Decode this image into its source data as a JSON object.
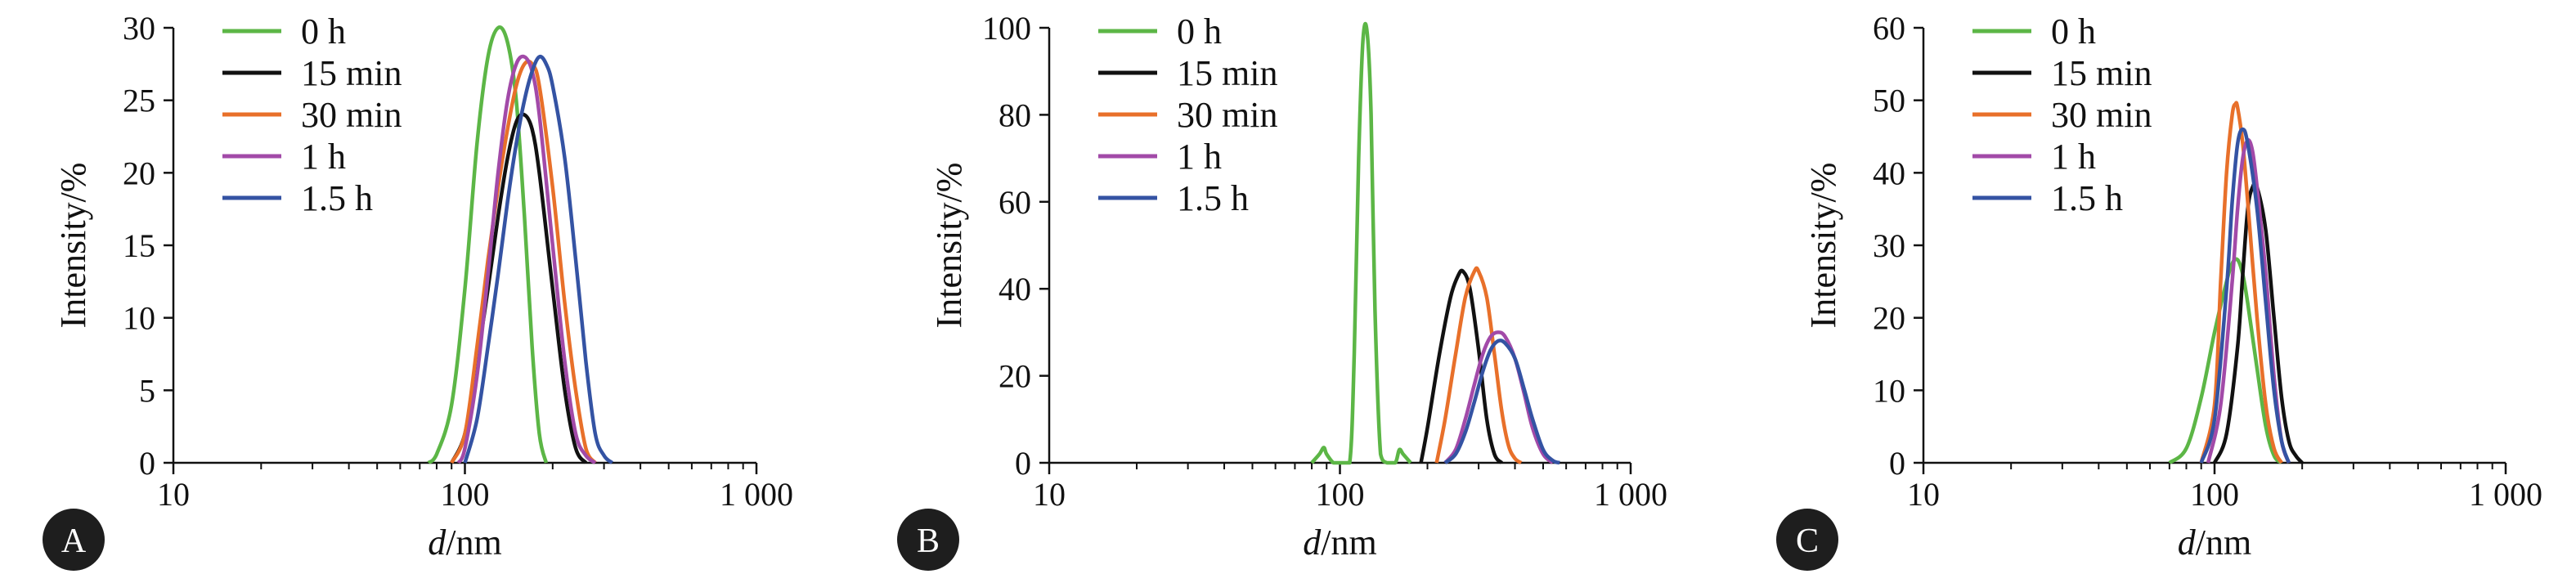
{
  "colors": {
    "0 h": "#5cb646",
    "15 min": "#111111",
    "30 min": "#e8702a",
    "1 h": "#a24aa8",
    "1.5 h": "#3453a3"
  },
  "chart_data": [
    {
      "type": "line",
      "panel_label": "A",
      "xlabel_italic": "d",
      "xlabel_rest": "/nm",
      "ylabel": "Intensity/%",
      "xscale": "log",
      "xlim": [
        10,
        1000
      ],
      "xticks": [
        10,
        100,
        1000
      ],
      "xtick_labels": [
        "10",
        "100",
        "1 000"
      ],
      "ylim": [
        0,
        30
      ],
      "yticks": [
        0,
        5,
        10,
        15,
        20,
        25,
        30
      ],
      "grid": false,
      "legend_position": "top-left",
      "series": [
        {
          "name": "0 h",
          "x": [
            75,
            80,
            90,
            100,
            110,
            120,
            130,
            140,
            150,
            160,
            170,
            180,
            190
          ],
          "y": [
            0,
            0.6,
            4,
            12,
            22,
            28,
            30,
            29,
            25,
            17,
            8,
            2,
            0
          ]
        },
        {
          "name": "15 min",
          "x": [
            90,
            100,
            110,
            120,
            130,
            140,
            150,
            160,
            170,
            180,
            200,
            220,
            240,
            260
          ],
          "y": [
            0,
            2,
            7,
            12,
            17,
            21,
            23.5,
            24,
            23,
            20,
            12,
            5,
            1,
            0
          ]
        },
        {
          "name": "30 min",
          "x": [
            90,
            100,
            110,
            120,
            130,
            140,
            150,
            160,
            170,
            180,
            200,
            220,
            240,
            260,
            280
          ],
          "y": [
            0,
            2,
            8,
            14,
            19,
            23,
            26,
            27.5,
            27.5,
            26,
            19,
            11,
            5,
            1,
            0
          ]
        },
        {
          "name": "1 h",
          "x": [
            95,
            100,
            110,
            120,
            130,
            140,
            150,
            160,
            170,
            180,
            200,
            220,
            240,
            260,
            280
          ],
          "y": [
            0,
            1,
            6,
            13,
            20,
            25,
            27.5,
            28,
            27,
            24,
            15,
            7,
            2,
            0.5,
            0
          ]
        },
        {
          "name": "1.5 h",
          "x": [
            100,
            110,
            120,
            130,
            140,
            150,
            160,
            170,
            180,
            190,
            200,
            220,
            240,
            260,
            280,
            300,
            320
          ],
          "y": [
            0,
            3,
            8,
            13,
            18,
            22,
            25,
            27,
            28,
            27.5,
            26,
            21,
            14,
            7,
            2,
            0.5,
            0
          ]
        }
      ]
    },
    {
      "type": "line",
      "panel_label": "B",
      "xlabel_italic": "d",
      "xlabel_rest": "/nm",
      "ylabel": "Intensity/%",
      "xscale": "log",
      "xlim": [
        10,
        1000
      ],
      "xticks": [
        10,
        100,
        1000
      ],
      "xtick_labels": [
        "10",
        "100",
        "1 000"
      ],
      "ylim": [
        0,
        100
      ],
      "yticks": [
        0,
        20,
        40,
        60,
        80,
        100
      ],
      "grid": false,
      "legend_position": "top-left",
      "series": [
        {
          "name": "0 h",
          "x": [
            80,
            85,
            88,
            90,
            95,
            100,
            108,
            112,
            116,
            120,
            124,
            128,
            132,
            138,
            145,
            155,
            160,
            165,
            175
          ],
          "y": [
            0,
            2,
            3.5,
            2,
            0,
            0,
            0,
            25,
            70,
            97,
            99,
            80,
            35,
            2,
            0,
            0,
            3,
            2,
            0
          ]
        },
        {
          "name": "15 min",
          "x": [
            190,
            200,
            220,
            240,
            255,
            265,
            280,
            300,
            320,
            340,
            360
          ],
          "y": [
            0,
            8,
            25,
            38,
            43,
            44,
            40,
            26,
            10,
            2,
            0
          ]
        },
        {
          "name": "30 min",
          "x": [
            215,
            230,
            250,
            270,
            290,
            300,
            320,
            340,
            360,
            380,
            400,
            420
          ],
          "y": [
            0,
            10,
            25,
            38,
            44,
            44,
            38,
            25,
            12,
            4,
            1,
            0
          ]
        },
        {
          "name": "1 h",
          "x": [
            230,
            250,
            270,
            290,
            310,
            330,
            350,
            370,
            400,
            430,
            460,
            500,
            540
          ],
          "y": [
            0,
            3,
            10,
            18,
            25,
            29,
            30,
            29,
            24,
            16,
            8,
            2,
            0
          ]
        },
        {
          "name": "1.5 h",
          "x": [
            230,
            250,
            270,
            290,
            310,
            330,
            350,
            370,
            400,
            430,
            460,
            500,
            540,
            570
          ],
          "y": [
            0,
            2,
            7,
            14,
            21,
            26,
            28,
            27.5,
            24,
            17,
            10,
            3,
            0.5,
            0
          ]
        }
      ]
    },
    {
      "type": "line",
      "panel_label": "C",
      "xlabel_italic": "d",
      "xlabel_rest": "/nm",
      "ylabel": "Intensity/%",
      "xscale": "log",
      "xlim": [
        10,
        1000
      ],
      "xticks": [
        10,
        100,
        1000
      ],
      "xtick_labels": [
        "10",
        "100",
        "1 000"
      ],
      "ylim": [
        0,
        60
      ],
      "yticks": [
        0,
        10,
        20,
        30,
        40,
        50,
        60
      ],
      "grid": false,
      "legend_position": "top-left",
      "series": [
        {
          "name": "0 h",
          "x": [
            70,
            80,
            90,
            100,
            110,
            115,
            120,
            125,
            130,
            140,
            150,
            160,
            170
          ],
          "y": [
            0,
            2,
            9,
            18,
            25,
            27.5,
            28,
            26,
            22,
            13,
            5,
            1,
            0
          ]
        },
        {
          "name": "15 min",
          "x": [
            100,
            110,
            120,
            125,
            130,
            135,
            140,
            150,
            160,
            170,
            180,
            190,
            200
          ],
          "y": [
            0,
            4,
            16,
            26,
            35,
            38,
            38,
            32,
            20,
            9,
            3,
            1,
            0
          ]
        },
        {
          "name": "30 min",
          "x": [
            90,
            100,
            105,
            110,
            115,
            118,
            120,
            125,
            130,
            140,
            150,
            160,
            170
          ],
          "y": [
            0,
            8,
            25,
            40,
            48,
            49.5,
            49,
            44,
            36,
            20,
            8,
            2,
            0
          ]
        },
        {
          "name": "1 h",
          "x": [
            95,
            105,
            115,
            120,
            125,
            130,
            135,
            140,
            150,
            160,
            170,
            180
          ],
          "y": [
            0,
            8,
            25,
            35,
            42,
            44.5,
            43,
            38,
            26,
            12,
            3,
            0
          ]
        },
        {
          "name": "1.5 h",
          "x": [
            90,
            100,
            110,
            115,
            120,
            125,
            130,
            140,
            150,
            160,
            170,
            180
          ],
          "y": [
            0,
            6,
            24,
            36,
            44,
            46,
            44,
            35,
            22,
            10,
            3,
            0
          ]
        }
      ]
    }
  ]
}
